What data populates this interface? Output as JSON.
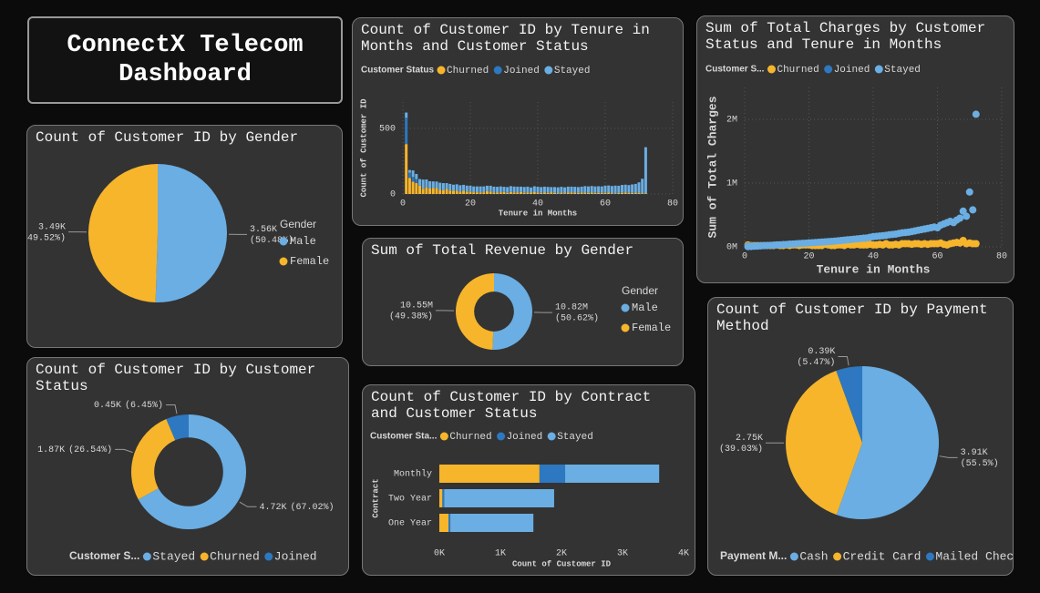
{
  "dashboard_title": "ConnectX Telecom Dashboard",
  "chart_data": [
    {
      "type": "pie",
      "title": "Count of Customer ID by Gender",
      "categories": [
        "Male",
        "Female"
      ],
      "colors": [
        "#6aaee3",
        "#f7b52c"
      ],
      "values": [
        3560,
        3490
      ],
      "value_labels": [
        "3.56K",
        "3.49K"
      ],
      "percents": [
        50.48,
        49.52
      ],
      "percent_labels": [
        "(50.48%)",
        "(49.52%)"
      ],
      "legend_title": "Gender",
      "legend": "right"
    },
    {
      "type": "bar",
      "title": "Count of Customer ID by Tenure in Months and Customer Status",
      "x_label": "Tenure in Months",
      "y_label": "Count of Customer ID",
      "legend_title": "Customer Status",
      "legend": "top",
      "grid": true,
      "xlim": [
        0,
        80
      ],
      "xticks": [
        0,
        20,
        40,
        60,
        80
      ],
      "ylim": [
        0,
        700
      ],
      "yticks": [
        0,
        500
      ],
      "x": [
        1,
        2,
        3,
        4,
        5,
        6,
        7,
        8,
        9,
        10,
        11,
        12,
        13,
        14,
        15,
        16,
        17,
        18,
        19,
        20,
        21,
        22,
        23,
        24,
        25,
        26,
        27,
        28,
        29,
        30,
        31,
        32,
        33,
        34,
        35,
        36,
        37,
        38,
        39,
        40,
        41,
        42,
        43,
        44,
        45,
        46,
        47,
        48,
        49,
        50,
        51,
        52,
        53,
        54,
        55,
        56,
        57,
        58,
        59,
        60,
        61,
        62,
        63,
        64,
        65,
        66,
        67,
        68,
        69,
        70,
        71,
        72
      ],
      "series": [
        {
          "name": "Churned",
          "color": "#f7b52c",
          "values": [
            380,
            123,
            95,
            83,
            64,
            40,
            51,
            42,
            46,
            45,
            31,
            28,
            38,
            27,
            26,
            24,
            17,
            25,
            19,
            19,
            13,
            13,
            13,
            13,
            23,
            18,
            11,
            10,
            13,
            15,
            8,
            15,
            12,
            11,
            16,
            9,
            11,
            10,
            14,
            10,
            8,
            11,
            9,
            13,
            8,
            6,
            10,
            6,
            11,
            11,
            10,
            8,
            11,
            10,
            8,
            11,
            8,
            9,
            8,
            9,
            10,
            6,
            4,
            8,
            9,
            11,
            8,
            8,
            7,
            9,
            6,
            6
          ]
        },
        {
          "name": "Joined",
          "color": "#2d78c0",
          "x": [
            1,
            2,
            3,
            4
          ],
          "values": [
            200,
            40,
            35,
            30
          ]
        },
        {
          "name": "Stayed",
          "color": "#6aaee3",
          "values": [
            40,
            20,
            50,
            40,
            50,
            70,
            60,
            55,
            50,
            50,
            55,
            55,
            45,
            50,
            45,
            50,
            50,
            45,
            45,
            45,
            45,
            45,
            45,
            45,
            40,
            45,
            45,
            45,
            45,
            40,
            45,
            45,
            45,
            45,
            40,
            45,
            45,
            40,
            45,
            45,
            45,
            45,
            45,
            40,
            45,
            45,
            45,
            45,
            45,
            45,
            45,
            45,
            45,
            50,
            50,
            50,
            50,
            50,
            50,
            55,
            55,
            55,
            60,
            55,
            60,
            60,
            60,
            65,
            70,
            80,
            110,
            350
          ]
        }
      ]
    },
    {
      "type": "donut",
      "title": "Sum of Total Revenue by Gender",
      "categories": [
        "Male",
        "Female"
      ],
      "colors": [
        "#6aaee3",
        "#f7b52c"
      ],
      "values": [
        10820000,
        10550000
      ],
      "value_labels": [
        "10.82M",
        "10.55M"
      ],
      "percents": [
        50.62,
        49.38
      ],
      "percent_labels": [
        "(50.62%)",
        "(49.38%)"
      ],
      "legend_title": "Gender",
      "legend": "right"
    },
    {
      "type": "scatter",
      "title": "Sum of Total Charges by Customer Status and Tenure in Months",
      "x_label": "Tenure in Months",
      "y_label": "Sum of Total Charges",
      "legend_title": "Customer S...",
      "legend": "top",
      "grid": true,
      "xlim": [
        0,
        80
      ],
      "xticks": [
        0,
        20,
        40,
        60,
        80
      ],
      "ylim": [
        0,
        2.5
      ],
      "yticks": [
        {
          "value": 0,
          "label": "0M"
        },
        {
          "value": 1,
          "label": "1M"
        },
        {
          "value": 2,
          "label": "2M"
        }
      ],
      "x": [
        1,
        2,
        3,
        4,
        5,
        6,
        7,
        8,
        9,
        10,
        11,
        12,
        13,
        14,
        15,
        16,
        17,
        18,
        19,
        20,
        21,
        22,
        23,
        24,
        25,
        26,
        27,
        28,
        29,
        30,
        31,
        32,
        33,
        34,
        35,
        36,
        37,
        38,
        39,
        40,
        41,
        42,
        43,
        44,
        45,
        46,
        47,
        48,
        49,
        50,
        51,
        52,
        53,
        54,
        55,
        56,
        57,
        58,
        59,
        60,
        61,
        62,
        63,
        64,
        65,
        66,
        67,
        68,
        69,
        70,
        71,
        72
      ],
      "series": [
        {
          "name": "Churned",
          "color": "#f7b52c",
          "values": [
            0.03,
            0.02,
            0.02,
            0.02,
            0.02,
            0.02,
            0.02,
            0.02,
            0.02,
            0.03,
            0.02,
            0.02,
            0.03,
            0.02,
            0.03,
            0.03,
            0.02,
            0.03,
            0.03,
            0.03,
            0.02,
            0.02,
            0.02,
            0.02,
            0.04,
            0.03,
            0.02,
            0.02,
            0.03,
            0.03,
            0.02,
            0.04,
            0.03,
            0.03,
            0.04,
            0.03,
            0.03,
            0.03,
            0.04,
            0.03,
            0.03,
            0.04,
            0.03,
            0.05,
            0.03,
            0.03,
            0.04,
            0.03,
            0.05,
            0.05,
            0.05,
            0.04,
            0.05,
            0.05,
            0.04,
            0.05,
            0.04,
            0.05,
            0.05,
            0.05,
            0.06,
            0.04,
            0.03,
            0.05,
            0.06,
            0.07,
            0.06,
            0.1,
            0.05,
            0.06,
            0.05,
            0.05
          ]
        },
        {
          "name": "Joined",
          "color": "#2d78c0",
          "x": [
            1,
            2,
            3,
            4
          ],
          "values": [
            0.01,
            0.01,
            0.01,
            0.01
          ]
        },
        {
          "name": "Stayed",
          "color": "#6aaee3",
          "values": [
            0.004,
            0.006,
            0.01,
            0.012,
            0.016,
            0.02,
            0.022,
            0.024,
            0.026,
            0.03,
            0.032,
            0.036,
            0.038,
            0.042,
            0.045,
            0.048,
            0.052,
            0.055,
            0.058,
            0.062,
            0.065,
            0.068,
            0.072,
            0.075,
            0.078,
            0.082,
            0.085,
            0.09,
            0.094,
            0.1,
            0.105,
            0.11,
            0.115,
            0.12,
            0.125,
            0.13,
            0.135,
            0.14,
            0.15,
            0.16,
            0.165,
            0.17,
            0.175,
            0.18,
            0.19,
            0.195,
            0.2,
            0.21,
            0.22,
            0.225,
            0.23,
            0.24,
            0.25,
            0.26,
            0.27,
            0.28,
            0.29,
            0.3,
            0.31,
            0.3,
            0.34,
            0.36,
            0.38,
            0.4,
            0.38,
            0.42,
            0.45,
            0.56,
            0.48,
            0.86,
            0.58,
            2.08
          ]
        }
      ]
    },
    {
      "type": "donut",
      "title": "Count of Customer ID by Customer Status",
      "categories": [
        "Stayed",
        "Churned",
        "Joined"
      ],
      "colors": [
        "#6aaee3",
        "#f7b52c",
        "#2d78c0"
      ],
      "values": [
        4720,
        1870,
        450
      ],
      "value_labels": [
        "4.72K",
        "1.87K",
        "0.45K"
      ],
      "percents": [
        67.02,
        26.54,
        6.45
      ],
      "percent_labels": [
        "(67.02%)",
        "(26.54%)",
        "(6.45%)"
      ],
      "legend_title": "Customer S...",
      "legend": "bottom"
    },
    {
      "type": "hbar",
      "title": "Count of Customer ID by Contract and Customer Status",
      "x_label": "Count of Customer ID",
      "y_label": "Contract",
      "legend_title": "Customer Sta...",
      "legend": "top",
      "categories": [
        "Monthly",
        "Two Year",
        "One Year"
      ],
      "xlim": [
        0,
        4
      ],
      "xticks": [
        {
          "value": 0,
          "label": "0K"
        },
        {
          "value": 1,
          "label": "1K"
        },
        {
          "value": 2,
          "label": "2K"
        },
        {
          "value": 3,
          "label": "3K"
        },
        {
          "value": 4,
          "label": "4K"
        }
      ],
      "series": [
        {
          "name": "Churned",
          "color": "#f7b52c",
          "values": [
            1.64,
            0.05,
            0.15
          ]
        },
        {
          "name": "Joined",
          "color": "#2d78c0",
          "values": [
            0.42,
            0.03,
            0.03
          ]
        },
        {
          "name": "Stayed",
          "color": "#6aaee3",
          "values": [
            1.54,
            1.8,
            1.36
          ]
        }
      ]
    },
    {
      "type": "pie",
      "title": "Count of Customer ID by Payment Method",
      "categories": [
        "Cash",
        "Credit Card",
        "Mailed Check"
      ],
      "colors": [
        "#6aaee3",
        "#f7b52c",
        "#2d78c0"
      ],
      "values": [
        3910,
        2750,
        390
      ],
      "value_labels": [
        "3.91K",
        "2.75K",
        "0.39K"
      ],
      "percents": [
        55.5,
        39.03,
        5.47
      ],
      "percent_labels": [
        "(55.5%)",
        "(39.03%)",
        "(5.47%)"
      ],
      "legend_title": "Payment M...",
      "legend": "bottom"
    }
  ]
}
